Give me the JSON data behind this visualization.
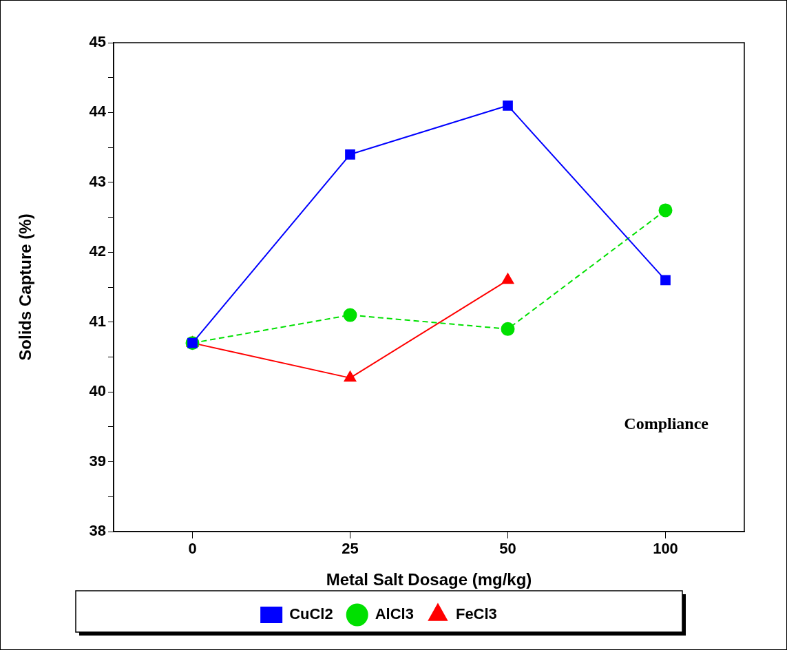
{
  "chart_data": {
    "type": "line",
    "xlabel": "Metal Salt Dosage (mg/kg)",
    "ylabel": "Solids Capture (%)",
    "categories": [
      "0",
      "25",
      "50",
      "100"
    ],
    "series": [
      {
        "name": "CuCl2",
        "color": "#0000ff",
        "values": [
          40.7,
          43.4,
          44.1,
          41.6
        ],
        "marker": "square",
        "line_style": "solid"
      },
      {
        "name": "AlCl3",
        "color": "#00e000",
        "values": [
          40.7,
          41.1,
          40.9,
          42.6
        ],
        "marker": "circle",
        "line_style": "dashed"
      },
      {
        "name": "FeCl3",
        "color": "#ff0000",
        "values": [
          40.7,
          40.2,
          41.6,
          null
        ],
        "marker": "triangle",
        "line_style": "solid"
      }
    ],
    "ylim": [
      38,
      45
    ],
    "yticks": [
      38,
      {
        "value": 38.5,
        "label": null
      },
      39,
      {
        "value": 39.5,
        "label": null
      },
      40,
      {
        "value": 40.5,
        "label": null
      },
      41,
      {
        "value": 41.5,
        "label": null
      },
      42,
      {
        "value": 42.5,
        "label": null
      },
      43,
      {
        "value": 43.5,
        "label": null
      },
      44,
      {
        "value": 44.5,
        "label": null
      },
      45
    ],
    "annotations": [
      "Compliance"
    ],
    "legend": "bottom",
    "grid": false
  }
}
